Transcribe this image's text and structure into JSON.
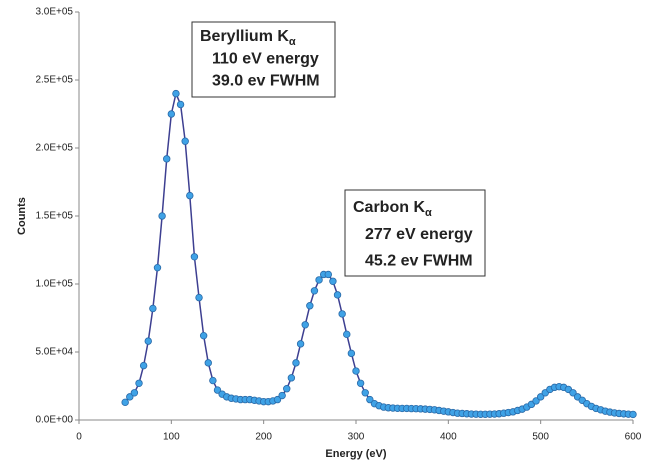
{
  "chart_data": {
    "type": "line",
    "xlabel": "Energy (eV)",
    "ylabel": "Counts",
    "xlim": [
      0,
      600
    ],
    "xticks": [
      0,
      100,
      200,
      300,
      400,
      500,
      600
    ],
    "ylim": [
      0,
      300000
    ],
    "yticks": [
      {
        "value": 0,
        "label": "0.0E+00"
      },
      {
        "value": 50000,
        "label": "5.0E+04"
      },
      {
        "value": 100000,
        "label": "1.0E+05"
      },
      {
        "value": 150000,
        "label": "1.5E+05"
      },
      {
        "value": 200000,
        "label": "2.0E+05"
      },
      {
        "value": 250000,
        "label": "2.5E+05"
      },
      {
        "value": 300000,
        "label": "3.0E+05"
      }
    ],
    "grid": false,
    "line_color": "#3d3f91",
    "marker_color": "#3fa2e6",
    "x": [
      50,
      55,
      60,
      65,
      70,
      75,
      80,
      85,
      90,
      95,
      100,
      105,
      110,
      115,
      120,
      125,
      130,
      135,
      140,
      145,
      150,
      155,
      160,
      165,
      170,
      175,
      180,
      185,
      190,
      195,
      200,
      205,
      210,
      215,
      220,
      225,
      230,
      235,
      240,
      245,
      250,
      255,
      260,
      265,
      270,
      275,
      280,
      285,
      290,
      295,
      300,
      305,
      310,
      315,
      320,
      325,
      330,
      335,
      340,
      345,
      350,
      355,
      360,
      365,
      370,
      375,
      380,
      385,
      390,
      395,
      400,
      405,
      410,
      415,
      420,
      425,
      430,
      435,
      440,
      445,
      450,
      455,
      460,
      465,
      470,
      475,
      480,
      485,
      490,
      495,
      500,
      505,
      510,
      515,
      520,
      525,
      530,
      535,
      540,
      545,
      550,
      555,
      560,
      565,
      570,
      575,
      580,
      585,
      590,
      595,
      600
    ],
    "values": [
      13000,
      17000,
      20000,
      27000,
      40000,
      58000,
      82000,
      112000,
      150000,
      192000,
      225000,
      240000,
      232000,
      205000,
      165000,
      120000,
      90000,
      62000,
      42000,
      29000,
      22000,
      19000,
      17000,
      16000,
      15500,
      15000,
      15000,
      15000,
      14500,
      14000,
      13500,
      13500,
      14000,
      15000,
      18000,
      23000,
      31000,
      42000,
      56000,
      70000,
      84000,
      95000,
      103000,
      107000,
      107000,
      102000,
      92000,
      78000,
      63000,
      49000,
      36000,
      27000,
      20000,
      15000,
      12000,
      10500,
      9500,
      9000,
      8800,
      8600,
      8500,
      8500,
      8400,
      8300,
      8200,
      8000,
      7800,
      7500,
      7000,
      6500,
      6000,
      5500,
      5000,
      4800,
      4600,
      4400,
      4300,
      4200,
      4200,
      4300,
      4400,
      4600,
      5000,
      5500,
      6000,
      7000,
      8000,
      9500,
      11500,
      14000,
      17000,
      20000,
      22500,
      24000,
      24500,
      24000,
      22500,
      20000,
      17000,
      14500,
      12000,
      10000,
      8500,
      7500,
      6500,
      5800,
      5200,
      4800,
      4500,
      4300,
      4100
    ],
    "annotations": [
      {
        "lines": [
          {
            "text": "Beryllium K",
            "sub": "α"
          },
          "110 eV energy",
          "39.0 ev FWHM"
        ]
      },
      {
        "lines": [
          {
            "text": "Carbon K",
            "sub": "α"
          },
          "277 eV energy",
          "45.2 ev FWHM"
        ]
      }
    ]
  }
}
